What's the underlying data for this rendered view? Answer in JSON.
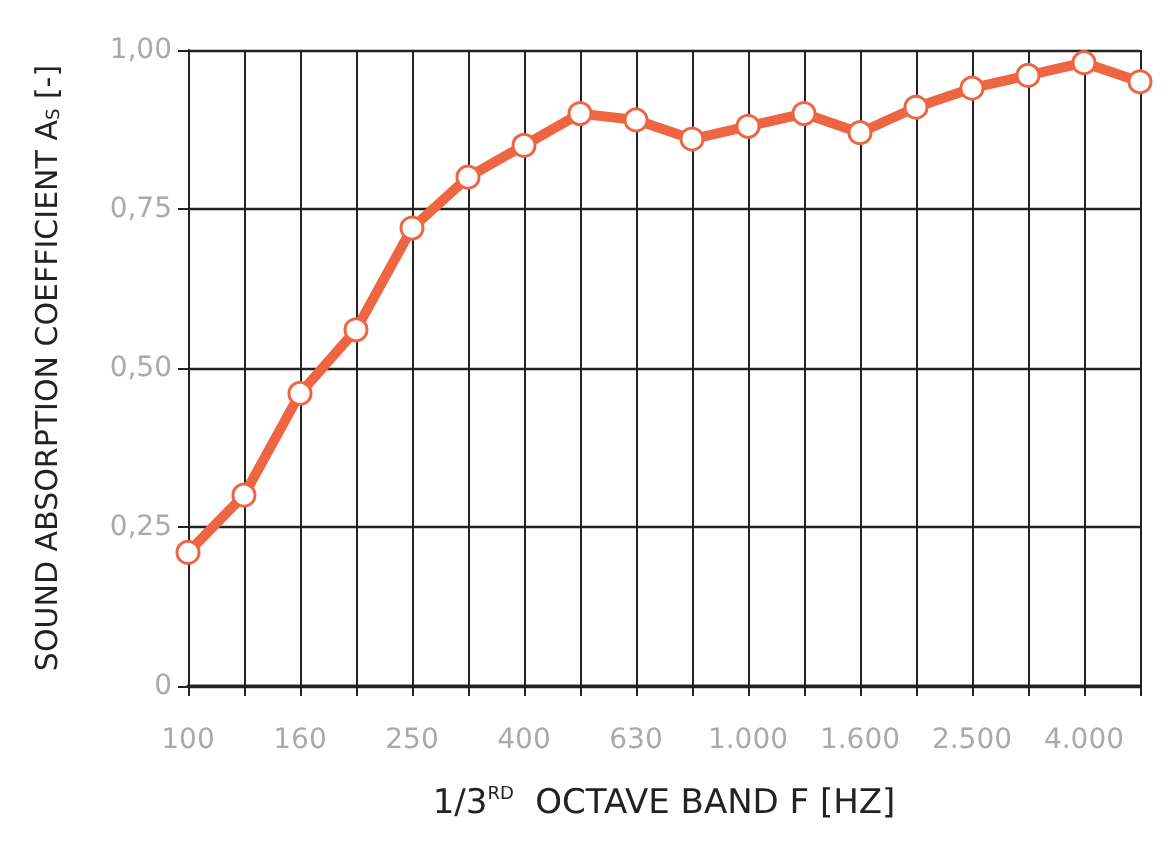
{
  "chart_data": {
    "type": "line",
    "xlabel": "1/3$^{RD}$  OCTAVE BAND F [HZ]",
    "ylabel": "SOUND ABSORPTION COEFFICIENT A$_{S}$ [-]",
    "categories": [
      "100",
      null,
      "160",
      null,
      "250",
      null,
      "400",
      null,
      "630",
      null,
      "1.000",
      null,
      "1.600",
      null,
      "2.500",
      null,
      "4.000",
      null
    ],
    "series": [
      {
        "color": "#ee6641",
        "values": [
          0.21,
          0.3,
          0.46,
          0.56,
          0.72,
          0.8,
          0.85,
          0.9,
          0.89,
          0.86,
          0.88,
          0.9,
          0.87,
          0.91,
          0.94,
          0.96,
          0.98,
          0.95
        ]
      }
    ],
    "ylim": [
      0,
      1
    ],
    "yticks": [
      0,
      {
        "value": 0.25,
        "label": "0,25"
      },
      {
        "value": 0.5,
        "label": "0,50"
      },
      {
        "value": 0.75,
        "label": "0,75"
      },
      {
        "value": 1,
        "label": "1,00"
      }
    ],
    "grid": true,
    "marker": "circle",
    "line_style": "solid"
  }
}
